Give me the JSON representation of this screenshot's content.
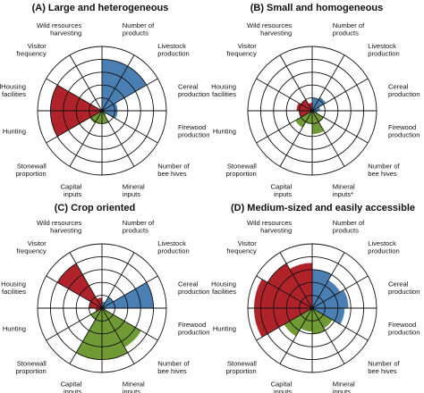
{
  "colors": {
    "red": "#b0232b",
    "blue": "#4a7fb3",
    "green": "#6f9a34"
  },
  "chart_data": [
    {
      "type": "radar-rose",
      "title": "(A) Large and heterogeneous",
      "max": 5,
      "grid_levels": [
        1,
        2,
        3,
        4,
        5
      ],
      "categories": [
        "Number of products",
        "Livestock production",
        "Cereal production",
        "Firewood production",
        "Number of bee hives",
        "Mineral inputs",
        "Capital inputs",
        "Stonewall proportion",
        "Hunting",
        "Housing facilities",
        "Visitor frequency",
        "Wild resources harvesting"
      ],
      "labels": [
        "Number of\nproducts",
        "Livestock\nproduction",
        "Cereal\nproduction",
        "Firewood\nproduction",
        "Number of\nbee hives",
        "Mineral\ninputs",
        "Capital\ninputs",
        "Stonewall\nproportion",
        "Hunting",
        "lHousing\nfacilities",
        "Visitor\nfrequency",
        "Wild resources\nharvesting"
      ],
      "values": [
        4.0,
        4.0,
        1.2,
        1.2,
        0.4,
        1.0,
        1.0,
        1.1,
        4.0,
        4.0,
        0.1,
        0.1
      ],
      "groups": [
        "blue",
        "blue",
        "blue",
        "blue",
        "green",
        "green",
        "green",
        "green",
        "red",
        "red",
        "red",
        "red"
      ]
    },
    {
      "type": "radar-rose",
      "title": "(B) Small and homogeneous",
      "max": 5,
      "grid_levels": [
        1,
        2,
        3,
        4,
        5
      ],
      "categories": [
        "Number of products",
        "Livestock production",
        "Cereal production",
        "Firewood production",
        "Number of bee hives",
        "Mineral inputs",
        "Capital inputs",
        "Stonewall proportion",
        "Hunting",
        "Housing facilities",
        "Visitor frequency",
        "Wild resources harvesting"
      ],
      "labels": [
        "Number of\nproducts",
        "Livestock\nproduction",
        "Cereal\nproduction",
        "Firewood\nproduction",
        "Number of\nbee hives",
        "Mineral\ninputs*",
        "Capital\ninputs",
        "Stonewall\nproportion",
        "Hunting",
        "Housing\nfacilities",
        "Visitor\nfrequency",
        "Wild resources\nharvesting"
      ],
      "values": [
        1.0,
        1.2,
        0.6,
        0.4,
        1.0,
        1.8,
        1.0,
        1.5,
        1.0,
        1.2,
        1.0,
        0.6
      ],
      "groups": [
        "blue",
        "blue",
        "blue",
        "blue",
        "green",
        "green",
        "green",
        "green",
        "red",
        "red",
        "red",
        "red"
      ]
    },
    {
      "type": "radar-rose",
      "title": "(C) Crop oriented",
      "max": 5,
      "grid_levels": [
        1,
        2,
        3,
        4,
        5
      ],
      "categories": [
        "Number of products",
        "Livestock production",
        "Cereal production",
        "Firewood production",
        "Number of bee hives",
        "Mineral inputs",
        "Capital inputs",
        "Stonewall proportion",
        "Hunting",
        "Housing facilities",
        "Visitor frequency",
        "Wild resources harvesting"
      ],
      "labels": [
        "Number of\nproducts",
        "Livestock\nproduction",
        "Cereal\nproduction",
        "Firewood\nproduction",
        "Number of\nbee hives",
        "Mineral\ninputs",
        "Capital\ninputs",
        "Stonewall\nproportion",
        "Hunting",
        "Housing\nfacilities",
        "Visitor\nfrequency",
        "Wild resources\nharvesting"
      ],
      "values": [
        0.5,
        1.0,
        4.0,
        0.3,
        3.5,
        4.0,
        4.0,
        1.0,
        0.5,
        1.0,
        4.0,
        0.8
      ],
      "groups": [
        "blue",
        "blue",
        "blue",
        "blue",
        "green",
        "green",
        "green",
        "green",
        "red",
        "red",
        "red",
        "red"
      ]
    },
    {
      "type": "radar-rose",
      "title": "(D) Medium-sized and easily accessible",
      "max": 5,
      "grid_levels": [
        1,
        2,
        3,
        4,
        5
      ],
      "categories": [
        "Number of products",
        "Livestock production",
        "Cereal production",
        "Firewood production",
        "Number of bee hives",
        "Mineral inputs",
        "Capital inputs",
        "Stonewall proportion",
        "Hunting",
        "Housing facilities",
        "Visitor frequency",
        "Wild resources harvesting"
      ],
      "labels": [
        "Number of\nproducts",
        "Livestock\nproduction",
        "Cereal\nproduction",
        "Firewood\nproduction",
        "Number of\nbee hives",
        "Mineral\ninputs",
        "Capital\ninputs",
        "Stonewall\nproportion",
        "Hunting",
        "Housing\nfacilities",
        "Visitor\nfrequency",
        "Wild resources\nharvesting"
      ],
      "values": [
        3.0,
        2.5,
        2.8,
        2.5,
        1.8,
        2.0,
        1.8,
        2.5,
        4.5,
        4.5,
        4.0,
        3.5
      ],
      "groups": [
        "blue",
        "blue",
        "blue",
        "blue",
        "green",
        "green",
        "green",
        "green",
        "red",
        "red",
        "red",
        "red"
      ]
    }
  ]
}
